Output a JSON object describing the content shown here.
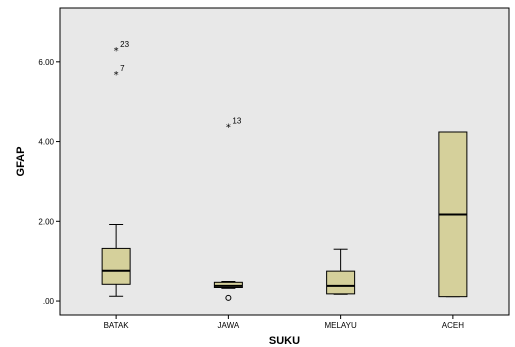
{
  "chart_data": {
    "type": "boxplot",
    "title": "",
    "xlabel": "SUKU",
    "ylabel": "GFAP",
    "ylim": [
      -0.35,
      7.35
    ],
    "yticks": [
      0,
      2,
      4,
      6
    ],
    "ytick_labels": [
      ".00",
      "2.00",
      "4.00",
      "6.00"
    ],
    "categories": [
      "BATAK",
      "JAWA",
      "MELAYU",
      "ACEH"
    ],
    "boxes": [
      {
        "min": 0.12,
        "q1": 0.42,
        "median": 0.76,
        "q3": 1.32,
        "max": 1.92
      },
      {
        "min": 0.32,
        "q1": 0.34,
        "median": 0.38,
        "q3": 0.47,
        "max": 0.49
      },
      {
        "min": 0.17,
        "q1": 0.18,
        "median": 0.38,
        "q3": 0.75,
        "max": 1.3
      },
      {
        "min": 0.11,
        "q1": 0.11,
        "median": 2.17,
        "q3": 4.24,
        "max": 4.24
      }
    ],
    "outliers": [
      {
        "category": "BATAK",
        "y": 6.3,
        "marker": "star",
        "label": "23"
      },
      {
        "category": "BATAK",
        "y": 5.7,
        "marker": "star",
        "label": "7"
      },
      {
        "category": "JAWA",
        "y": 4.38,
        "marker": "star",
        "label": "13"
      },
      {
        "category": "JAWA",
        "y": 0.08,
        "marker": "circle",
        "label": ""
      }
    ],
    "box_color": "#d5d09b",
    "plot_background": "#e8e8e8",
    "grid": false
  }
}
